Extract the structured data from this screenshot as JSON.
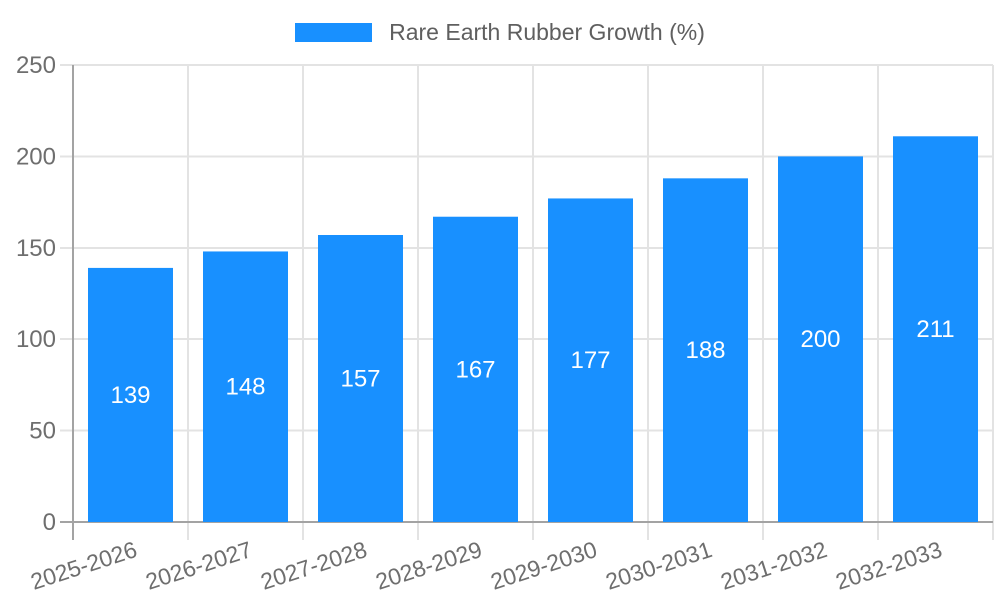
{
  "legend": {
    "label": "Rare Earth Rubber Growth (%)"
  },
  "chart_data": {
    "type": "bar",
    "title": "",
    "categories": [
      "2025-2026",
      "2026-2027",
      "2027-2028",
      "2028-2029",
      "2029-2030",
      "2030-2031",
      "2031-2032",
      "2032-2033"
    ],
    "series": [
      {
        "name": "Rare Earth Rubber Growth (%)",
        "values": [
          139,
          148,
          157,
          167,
          177,
          188,
          200,
          211
        ],
        "color": "#1890ff"
      }
    ],
    "xlabel": "",
    "ylabel": "",
    "ylim": [
      0,
      250
    ],
    "yticks": [
      0,
      50,
      100,
      150,
      200,
      250
    ],
    "grid": true,
    "legend_position": "top",
    "bar_labels_inside": true,
    "bar_label_color": "#ffffff",
    "x_tick_rotation_deg": -18
  },
  "colors": {
    "bar": "#1890ff",
    "grid_line": "#e3e3e3",
    "axis_line": "#a3a3a3",
    "tick_text": "#6e6e6e",
    "legend_text": "#5f5f5f",
    "background": "#ffffff"
  }
}
